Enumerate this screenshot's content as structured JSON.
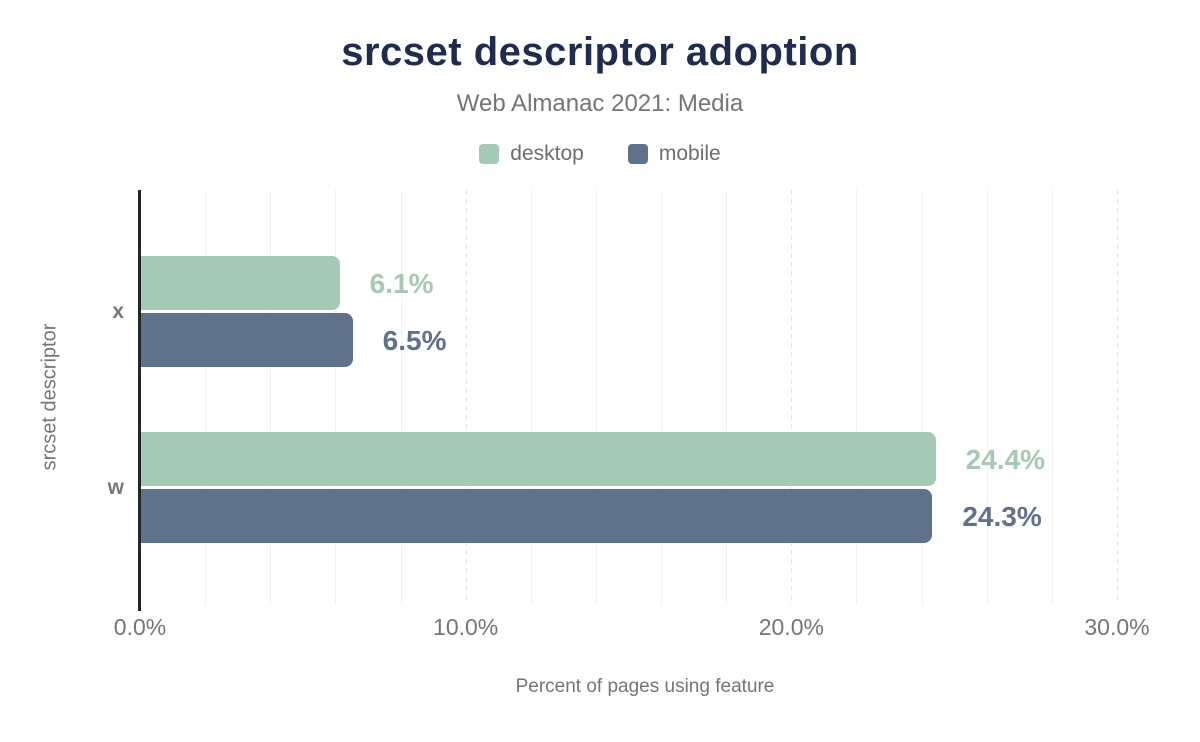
{
  "title": "srcset descriptor adoption",
  "subtitle": "Web Almanac 2021: Media",
  "legend": [
    {
      "label": "desktop",
      "color": "#a4c9b4"
    },
    {
      "label": "mobile",
      "color": "#5f718b"
    }
  ],
  "chart_data": {
    "type": "bar",
    "orientation": "horizontal",
    "title": "srcset descriptor adoption",
    "subtitle": "Web Almanac 2021: Media",
    "categories": [
      "x",
      "w"
    ],
    "series": [
      {
        "name": "desktop",
        "color": "#a4c9b4",
        "values": [
          6.1,
          24.4
        ],
        "labels": [
          "6.1%",
          "24.4%"
        ]
      },
      {
        "name": "mobile",
        "color": "#5f718b",
        "values": [
          6.5,
          24.3
        ],
        "labels": [
          "6.5%",
          "24.3%"
        ]
      }
    ],
    "xlabel": "Percent of pages using feature",
    "ylabel": "srcset descriptor",
    "xlim": [
      0,
      30
    ],
    "x_ticks": [
      {
        "value": 0,
        "label": "0.0%"
      },
      {
        "value": 10,
        "label": "10.0%"
      },
      {
        "value": 20,
        "label": "20.0%"
      },
      {
        "value": 30,
        "label": "30.0%"
      }
    ],
    "grid": {
      "minor_step": 2,
      "major_step": 10,
      "major_style": "dashed"
    },
    "legend_position": "top"
  },
  "colors": {
    "title_text": "#1d2c4f",
    "muted_text": "#757575",
    "axis_line": "#262626",
    "grid_minor": "#f1f1f1",
    "grid_major": "#e3e3e3",
    "background": "#ffffff"
  }
}
